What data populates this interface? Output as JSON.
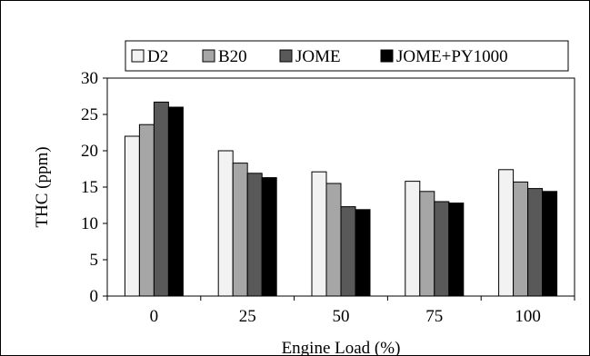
{
  "chart_data": {
    "type": "bar",
    "xlabel": "Engine Load (%)",
    "ylabel": "THC (ppm)",
    "categories": [
      "0",
      "25",
      "50",
      "75",
      "100"
    ],
    "ylim": [
      0,
      30
    ],
    "yticks": [
      "0",
      "5",
      "10",
      "15",
      "20",
      "25",
      "30"
    ],
    "grid": false,
    "legend_position": "top",
    "series": [
      {
        "name": "D2",
        "color": "#f2f2f2",
        "values": [
          22.0,
          20.0,
          17.1,
          15.8,
          17.4
        ]
      },
      {
        "name": "B20",
        "color": "#a6a6a6",
        "values": [
          23.6,
          18.3,
          15.5,
          14.4,
          15.7
        ]
      },
      {
        "name": "JOME",
        "color": "#595959",
        "values": [
          26.7,
          16.9,
          12.3,
          13.0,
          14.8
        ]
      },
      {
        "name": "JOME+PY1000",
        "color": "#000000",
        "values": [
          26.0,
          16.3,
          11.9,
          12.8,
          14.4
        ]
      }
    ]
  }
}
